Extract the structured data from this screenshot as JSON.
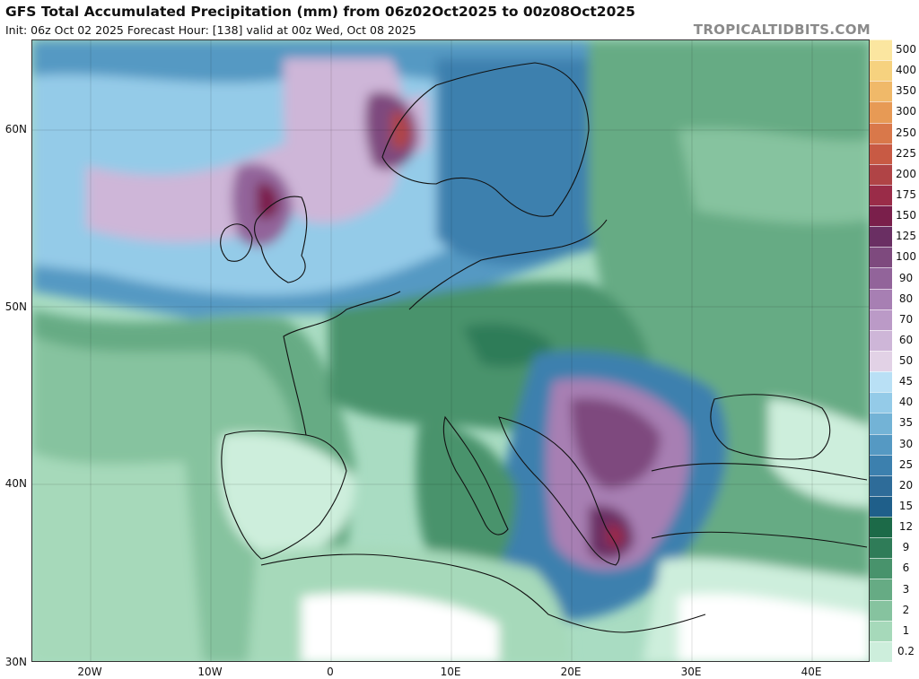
{
  "header": {
    "title": "GFS Total Accumulated Precipitation (mm) from 06z02Oct2025 to 00z08Oct2025",
    "subtitle": "Init: 06z Oct 02 2025   Forecast Hour: [138]   valid at 00z Wed, Oct 08 2025",
    "brand": "TROPICALTIDBITS.COM"
  },
  "map": {
    "lat_labels": [
      "60N",
      "50N",
      "40N",
      "30N"
    ],
    "lon_labels": [
      "20W",
      "10W",
      "0",
      "10E",
      "20E",
      "30E",
      "40E"
    ]
  },
  "legend": {
    "levels": [
      {
        "label": "500",
        "color": "#fbe6a0"
      },
      {
        "label": "400",
        "color": "#f6d27f"
      },
      {
        "label": "350",
        "color": "#f0b969"
      },
      {
        "label": "300",
        "color": "#e79a55"
      },
      {
        "label": "250",
        "color": "#d9784a"
      },
      {
        "label": "225",
        "color": "#c85a44"
      },
      {
        "label": "200",
        "color": "#b04446"
      },
      {
        "label": "175",
        "color": "#9a2c48"
      },
      {
        "label": "150",
        "color": "#7a1f4b"
      },
      {
        "label": "125",
        "color": "#6a2f63"
      },
      {
        "label": "100",
        "color": "#7e4a7e"
      },
      {
        "label": "90",
        "color": "#92649a"
      },
      {
        "label": "80",
        "color": "#a77fb3"
      },
      {
        "label": "70",
        "color": "#bb9ac7"
      },
      {
        "label": "60",
        "color": "#ceb6d8"
      },
      {
        "label": "50",
        "color": "#e2d2e6"
      },
      {
        "label": "45",
        "color": "#b9e0f5"
      },
      {
        "label": "40",
        "color": "#94cbe8"
      },
      {
        "label": "35",
        "color": "#73b3d6"
      },
      {
        "label": "30",
        "color": "#5599c3"
      },
      {
        "label": "25",
        "color": "#3c80ae"
      },
      {
        "label": "20",
        "color": "#2e6c99"
      },
      {
        "label": "15",
        "color": "#1f5f8a"
      },
      {
        "label": "12",
        "color": "#1c6a48"
      },
      {
        "label": "9",
        "color": "#2f7c58"
      },
      {
        "label": "6",
        "color": "#48936c"
      },
      {
        "label": "3",
        "color": "#66ab84"
      },
      {
        "label": "2",
        "color": "#86c39f"
      },
      {
        "label": "1",
        "color": "#a6d9ba"
      },
      {
        "label": "0.2",
        "color": "#cdeedc"
      }
    ]
  }
}
